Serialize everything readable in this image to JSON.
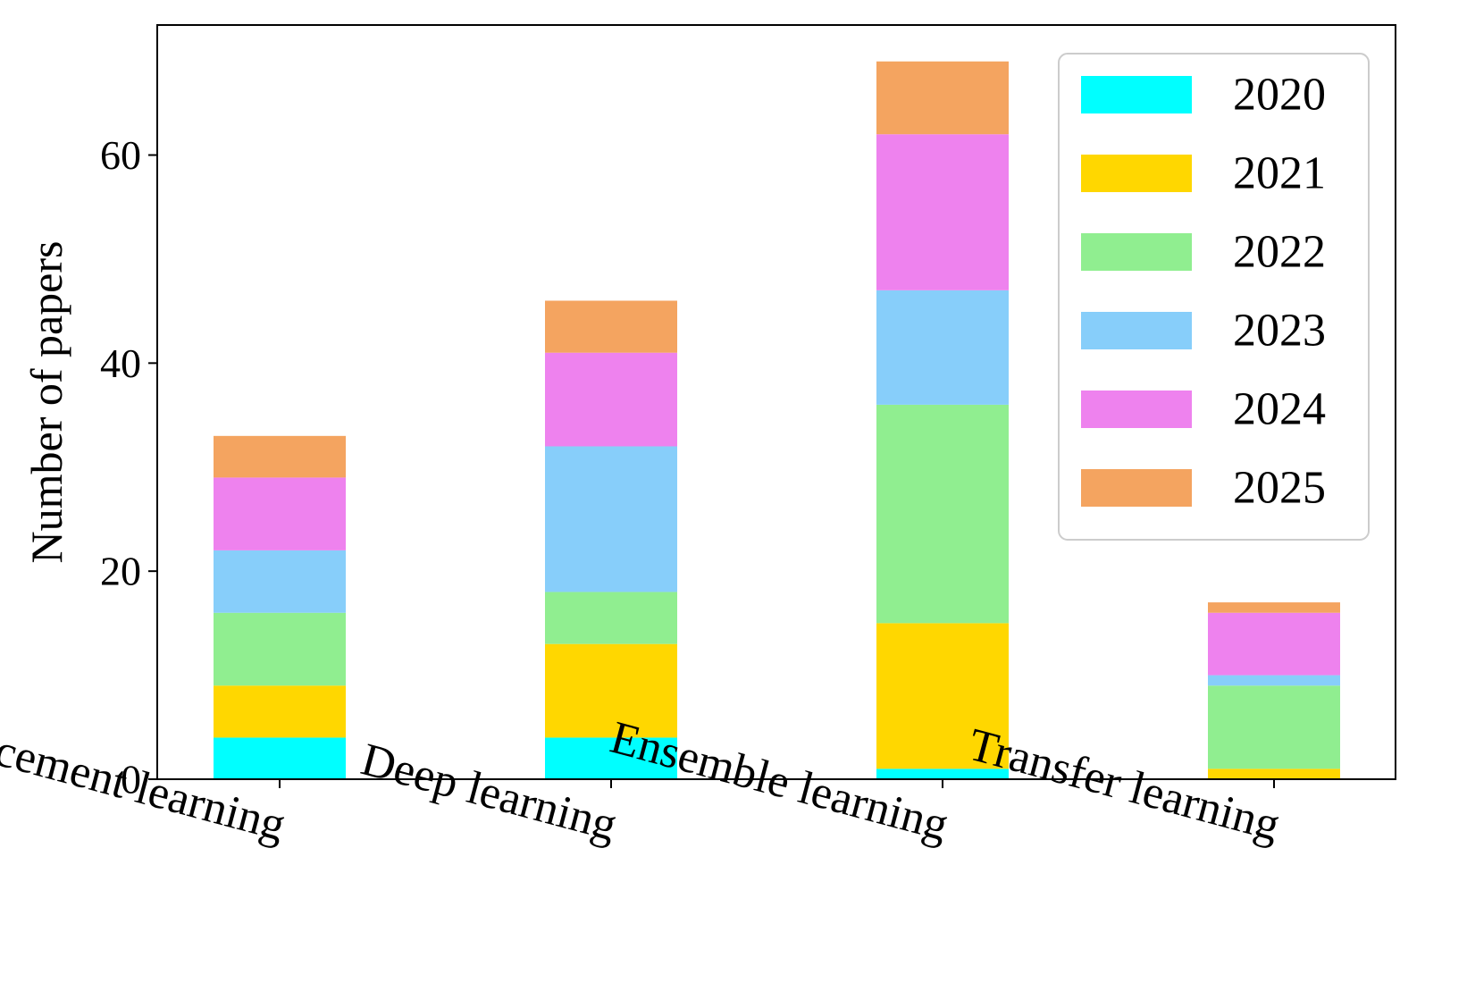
{
  "chart_data": {
    "type": "bar",
    "stacked": true,
    "title": "",
    "xlabel": "",
    "ylabel": "Number of papers",
    "ylim": [
      0,
      72.5
    ],
    "yticks": [
      0,
      20,
      40,
      60
    ],
    "grid": false,
    "legend_position": "top-right",
    "categories": [
      "Reinforcement learning",
      "Deep learning",
      "Ensemble learning",
      "Transfer learning"
    ],
    "series": [
      {
        "name": "2020",
        "color": "#00FFFF",
        "values": [
          4,
          4,
          1,
          0
        ]
      },
      {
        "name": "2021",
        "color": "#FFD700",
        "values": [
          5,
          9,
          14,
          1
        ]
      },
      {
        "name": "2022",
        "color": "#90EE90",
        "values": [
          7,
          5,
          21,
          8
        ]
      },
      {
        "name": "2023",
        "color": "#87CEFA",
        "values": [
          6,
          14,
          11,
          1
        ]
      },
      {
        "name": "2024",
        "color": "#EE82EE",
        "values": [
          7,
          9,
          15,
          6
        ]
      },
      {
        "name": "2025",
        "color": "#F4A460",
        "values": [
          4,
          5,
          7,
          1
        ]
      }
    ]
  }
}
